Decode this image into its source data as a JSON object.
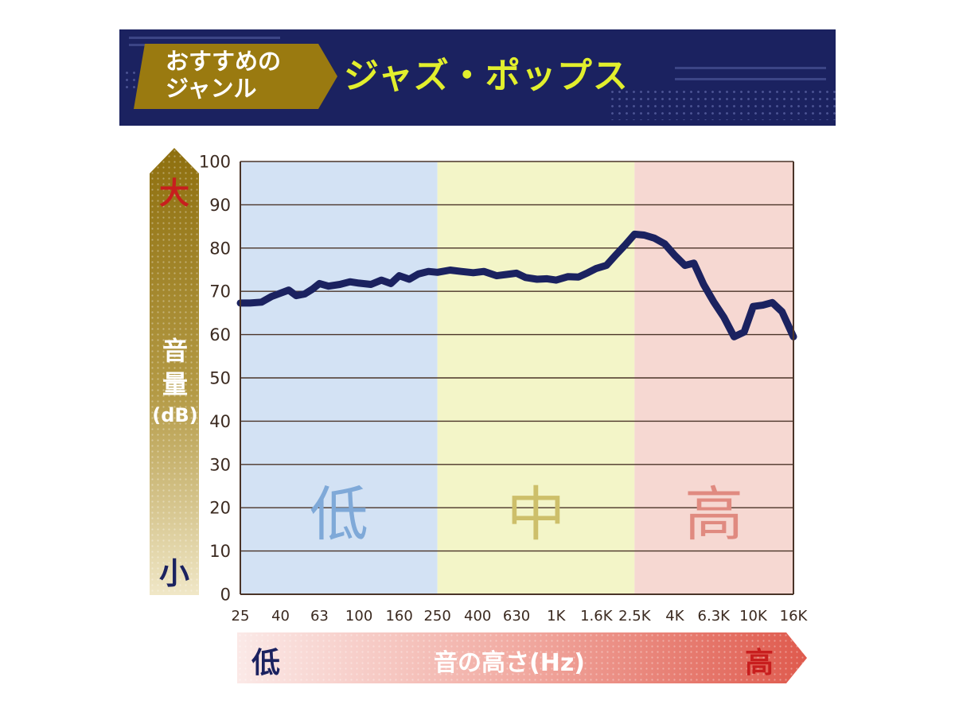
{
  "header": {
    "tag_label_line1": "おすすめの",
    "tag_label_line2": "ジャンル",
    "genre": "ジャズ・ポップス"
  },
  "volume_axis": {
    "top": "大",
    "bottom": "小",
    "label_line1": "音",
    "label_line2": "量",
    "unit": "(dB)"
  },
  "pitch_axis": {
    "low": "低",
    "high": "高",
    "label": "音の高さ(Hz)"
  },
  "colors": {
    "banner": "#1b2260",
    "tag": "#9a7a10",
    "genre_text": "#e2ef2d",
    "low_band": "#d3e2f4",
    "mid_band": "#f3f5c8",
    "high_band": "#f6d8d2",
    "line": "#1b2260"
  },
  "chart_data": {
    "type": "line",
    "xscale": "log",
    "xlim": [
      25,
      16000
    ],
    "ylim": [
      0,
      100
    ],
    "yticks": [
      0,
      10,
      20,
      30,
      40,
      50,
      60,
      70,
      80,
      90,
      100
    ],
    "xticks": [
      {
        "label": "25",
        "value": 25
      },
      {
        "label": "40",
        "value": 40
      },
      {
        "label": "63",
        "value": 63
      },
      {
        "label": "100",
        "value": 100
      },
      {
        "label": "160",
        "value": 160
      },
      {
        "label": "250",
        "value": 250
      },
      {
        "label": "400",
        "value": 400
      },
      {
        "label": "630",
        "value": 630
      },
      {
        "label": "1K",
        "value": 1000
      },
      {
        "label": "1.6K",
        "value": 1600
      },
      {
        "label": "2.5K",
        "value": 2500
      },
      {
        "label": "4K",
        "value": 4000
      },
      {
        "label": "6.3K",
        "value": 6300
      },
      {
        "label": "10K",
        "value": 10000
      },
      {
        "label": "16K",
        "value": 16000
      }
    ],
    "bands": [
      {
        "label": "低",
        "from": 25,
        "to": 250,
        "fill": "#d3e2f4",
        "text_color": "#7fa9d8"
      },
      {
        "label": "中",
        "from": 250,
        "to": 2500,
        "fill": "#f3f5c8",
        "text_color": "#cdbf6a"
      },
      {
        "label": "高",
        "from": 2500,
        "to": 16000,
        "fill": "#f6d8d2",
        "text_color": "#e08a80"
      }
    ],
    "grid": true,
    "series": [
      {
        "x": [
          25,
          28,
          32,
          36,
          40,
          44,
          48,
          53,
          58,
          63,
          70,
          80,
          90,
          100,
          115,
          130,
          145,
          160,
          180,
          200,
          225,
          250,
          290,
          330,
          380,
          430,
          500,
          560,
          630,
          700,
          800,
          900,
          1000,
          1150,
          1300,
          1450,
          1600,
          1800,
          2000,
          2250,
          2500,
          2800,
          3150,
          3550,
          4000,
          4500,
          5000,
          5600,
          6300,
          7100,
          8000,
          9000,
          10000,
          11200,
          12500,
          14000,
          16000
        ],
        "y": [
          67.3,
          67.3,
          67.5,
          68.8,
          69.6,
          70.3,
          69.0,
          69.4,
          70.5,
          71.8,
          71.2,
          71.6,
          72.2,
          71.9,
          71.6,
          72.6,
          71.8,
          73.6,
          72.8,
          74.0,
          74.6,
          74.4,
          74.9,
          74.6,
          74.3,
          74.6,
          73.6,
          73.9,
          74.2,
          73.2,
          72.8,
          72.9,
          72.6,
          73.4,
          73.3,
          74.3,
          75.3,
          76.0,
          78.3,
          80.8,
          83.2,
          83.0,
          82.3,
          81.0,
          78.3,
          76.0,
          76.5,
          71.6,
          67.6,
          64.0,
          59.5,
          60.6,
          66.5,
          66.8,
          67.4,
          65.3,
          59.5
        ]
      }
    ]
  }
}
